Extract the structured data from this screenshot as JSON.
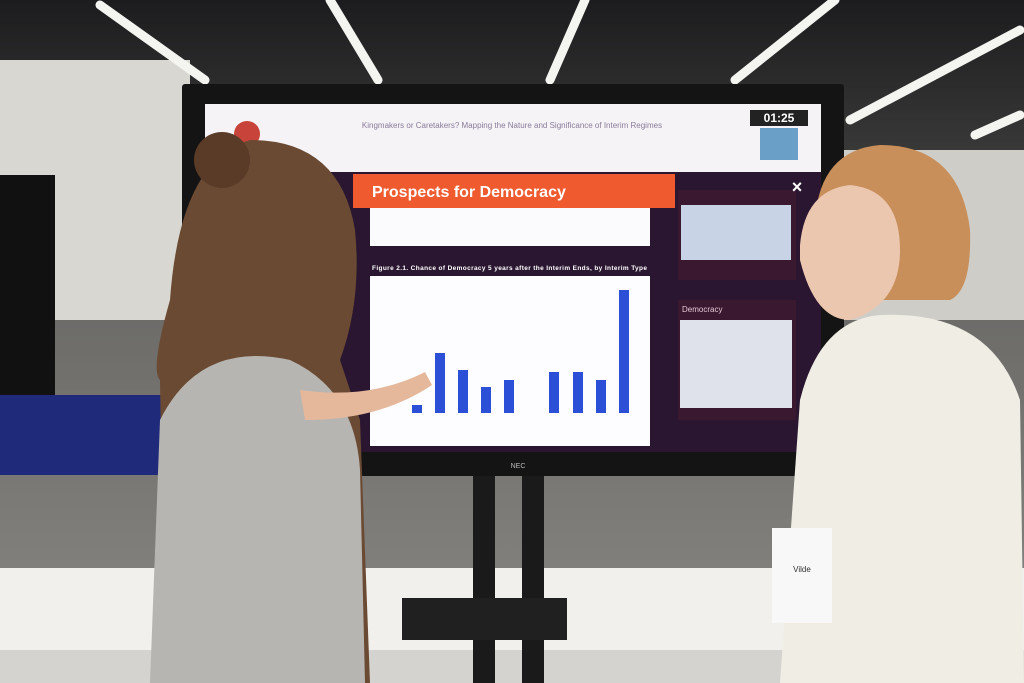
{
  "screen": {
    "header_title": "Kingmakers or Caretakers? Mapping the Nature and Significance of Interim Regimes",
    "timer": "01:25",
    "slide_title": "Prospects for Democracy",
    "figure_caption": "Figure 2.1. Chance of Democracy 5 years after the Interim Ends, by Interim Type",
    "side_panel_label": "Democracy",
    "brand": "NEC",
    "chart": {
      "type": "bar",
      "values": [
        8,
        60,
        43,
        26,
        33,
        41,
        41,
        33,
        123
      ],
      "ylim": [
        0,
        130
      ],
      "color": "#2b4fd6"
    }
  },
  "badge": {
    "name": "Vilde"
  }
}
